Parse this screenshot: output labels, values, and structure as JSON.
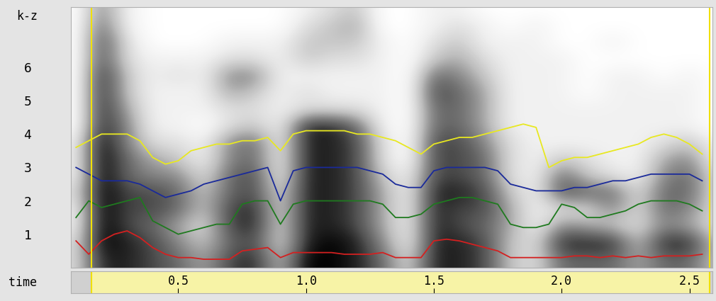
{
  "chart_data": {
    "type": "spectrogram",
    "xlabel": "time",
    "ylabel": "k-z",
    "xlim": [
      0.08,
      2.59
    ],
    "xticks": [
      0.5,
      1.0,
      1.5,
      2.0,
      2.5
    ],
    "ylim": [
      0,
      7.8
    ],
    "yticks": [
      1,
      2,
      3,
      4,
      5,
      6
    ],
    "selection": [
      0.16,
      2.58
    ],
    "cells": {
      "x": [
        0.1,
        0.2,
        0.3,
        0.4,
        0.5,
        0.6,
        0.7,
        0.8,
        0.9,
        1.0,
        1.1,
        1.2,
        1.3,
        1.4,
        1.5,
        1.6,
        1.7,
        1.8,
        1.9,
        2.0,
        2.1,
        2.2,
        2.3,
        2.4,
        2.5,
        2.6
      ],
      "y": [
        0.25,
        0.75,
        1.25,
        1.75,
        2.25,
        2.75,
        3.25,
        3.75,
        4.25,
        4.75,
        5.25,
        5.75,
        6.25,
        6.75,
        7.25,
        7.75
      ],
      "zlim": [
        0,
        9
      ],
      "values": [
        [
          2,
          2,
          1,
          1,
          2,
          1,
          1,
          1,
          0,
          0,
          0,
          0,
          0,
          0,
          0,
          0
        ],
        [
          8,
          9,
          9,
          9,
          9,
          9,
          9,
          9,
          8,
          8,
          8,
          8,
          7,
          7,
          6,
          5
        ],
        [
          8,
          8,
          7,
          7,
          7,
          6,
          6,
          5,
          5,
          4,
          3,
          3,
          2,
          2,
          1,
          1
        ],
        [
          7,
          7,
          6,
          7,
          7,
          5,
          4,
          2,
          1,
          1,
          1,
          1,
          1,
          0,
          0,
          0
        ],
        [
          6,
          5,
          4,
          6,
          6,
          5,
          3,
          2,
          1,
          1,
          1,
          2,
          1,
          0,
          0,
          0
        ],
        [
          4,
          3,
          2,
          3,
          3,
          2,
          1,
          1,
          0,
          1,
          1,
          1,
          1,
          0,
          0,
          0
        ],
        [
          7,
          6,
          7,
          7,
          6,
          6,
          5,
          5,
          2,
          2,
          4,
          5,
          2,
          1,
          0,
          0
        ],
        [
          8,
          7,
          8,
          8,
          7,
          7,
          6,
          6,
          3,
          2,
          3,
          5,
          2,
          1,
          0,
          0
        ],
        [
          3,
          2,
          2,
          2,
          2,
          1,
          1,
          1,
          1,
          1,
          1,
          1,
          1,
          1,
          0,
          0
        ],
        [
          9,
          8,
          8,
          8,
          8,
          8,
          8,
          8,
          8,
          2,
          2,
          1,
          3,
          3,
          2,
          1
        ],
        [
          9,
          9,
          8,
          8,
          8,
          8,
          8,
          8,
          8,
          2,
          1,
          1,
          2,
          3,
          3,
          2
        ],
        [
          8,
          8,
          7,
          7,
          7,
          7,
          7,
          7,
          6,
          2,
          1,
          1,
          2,
          3,
          4,
          3
        ],
        [
          6,
          5,
          4,
          4,
          4,
          3,
          2,
          2,
          1,
          1,
          1,
          1,
          1,
          1,
          0,
          0
        ],
        [
          2,
          1,
          1,
          1,
          1,
          1,
          0,
          0,
          0,
          0,
          0,
          0,
          0,
          0,
          0,
          0
        ],
        [
          8,
          8,
          8,
          8,
          8,
          7,
          7,
          7,
          6,
          6,
          7,
          6,
          3,
          2,
          1,
          1
        ],
        [
          8,
          8,
          7,
          7,
          8,
          7,
          7,
          7,
          6,
          6,
          6,
          5,
          4,
          3,
          2,
          1
        ],
        [
          7,
          7,
          6,
          7,
          7,
          6,
          6,
          5,
          4,
          4,
          4,
          3,
          2,
          1,
          1,
          0
        ],
        [
          3,
          3,
          4,
          4,
          3,
          2,
          2,
          2,
          1,
          1,
          1,
          1,
          1,
          1,
          0,
          0
        ],
        [
          2,
          2,
          1,
          1,
          1,
          1,
          1,
          1,
          1,
          1,
          1,
          1,
          1,
          1,
          1,
          0
        ],
        [
          6,
          8,
          5,
          2,
          7,
          6,
          3,
          1,
          1,
          1,
          1,
          1,
          1,
          0,
          0,
          0
        ],
        [
          6,
          8,
          4,
          2,
          6,
          3,
          2,
          1,
          1,
          1,
          0,
          0,
          0,
          0,
          0,
          0
        ],
        [
          6,
          8,
          3,
          5,
          6,
          2,
          1,
          1,
          1,
          1,
          1,
          1,
          0,
          1,
          0,
          0
        ],
        [
          4,
          3,
          2,
          2,
          2,
          1,
          1,
          1,
          1,
          1,
          1,
          1,
          0,
          0,
          0,
          0
        ],
        [
          6,
          8,
          5,
          6,
          6,
          5,
          4,
          2,
          1,
          1,
          1,
          0,
          0,
          0,
          0,
          0
        ],
        [
          6,
          8,
          4,
          5,
          6,
          6,
          5,
          3,
          1,
          1,
          1,
          1,
          0,
          0,
          0,
          0
        ],
        [
          3,
          3,
          2,
          2,
          2,
          2,
          1,
          1,
          0,
          0,
          0,
          0,
          0,
          0,
          0,
          0
        ]
      ]
    },
    "x": [
      0.1,
      0.15,
      0.2,
      0.25,
      0.3,
      0.35,
      0.4,
      0.45,
      0.5,
      0.55,
      0.6,
      0.65,
      0.7,
      0.75,
      0.8,
      0.85,
      0.9,
      0.95,
      1.0,
      1.05,
      1.1,
      1.15,
      1.2,
      1.25,
      1.3,
      1.35,
      1.4,
      1.45,
      1.5,
      1.55,
      1.6,
      1.65,
      1.7,
      1.75,
      1.8,
      1.85,
      1.9,
      1.95,
      2.0,
      2.05,
      2.1,
      2.15,
      2.2,
      2.25,
      2.3,
      2.35,
      2.4,
      2.45,
      2.5,
      2.55
    ],
    "series": [
      {
        "color": "#d42020",
        "values": [
          0.8,
          0.4,
          0.8,
          1.0,
          1.1,
          0.9,
          0.6,
          0.4,
          0.3,
          0.3,
          0.25,
          0.25,
          0.25,
          0.5,
          0.55,
          0.6,
          0.3,
          0.45,
          0.45,
          0.45,
          0.45,
          0.4,
          0.4,
          0.4,
          0.45,
          0.3,
          0.3,
          0.3,
          0.8,
          0.85,
          0.8,
          0.7,
          0.6,
          0.5,
          0.3,
          0.3,
          0.3,
          0.3,
          0.3,
          0.35,
          0.35,
          0.3,
          0.35,
          0.3,
          0.35,
          0.3,
          0.35,
          0.35,
          0.35,
          0.4
        ]
      },
      {
        "color": "#1f7a1f",
        "values": [
          1.5,
          2.0,
          1.8,
          1.9,
          2.0,
          2.1,
          1.4,
          1.2,
          1.0,
          1.1,
          1.2,
          1.3,
          1.3,
          1.9,
          2.0,
          2.0,
          1.3,
          1.9,
          2.0,
          2.0,
          2.0,
          2.0,
          2.0,
          2.0,
          1.9,
          1.5,
          1.5,
          1.6,
          1.9,
          2.0,
          2.1,
          2.1,
          2.0,
          1.9,
          1.3,
          1.2,
          1.2,
          1.3,
          1.9,
          1.8,
          1.5,
          1.5,
          1.6,
          1.7,
          1.9,
          2.0,
          2.0,
          2.0,
          1.9,
          1.7
        ]
      },
      {
        "color": "#1a2a9a",
        "values": [
          3.0,
          2.8,
          2.6,
          2.6,
          2.6,
          2.5,
          2.3,
          2.1,
          2.2,
          2.3,
          2.5,
          2.6,
          2.7,
          2.8,
          2.9,
          3.0,
          2.0,
          2.9,
          3.0,
          3.0,
          3.0,
          3.0,
          3.0,
          2.9,
          2.8,
          2.5,
          2.4,
          2.4,
          2.9,
          3.0,
          3.0,
          3.0,
          3.0,
          2.9,
          2.5,
          2.4,
          2.3,
          2.3,
          2.3,
          2.4,
          2.4,
          2.5,
          2.6,
          2.6,
          2.7,
          2.8,
          2.8,
          2.8,
          2.8,
          2.6
        ]
      },
      {
        "color": "#e8e820",
        "values": [
          3.6,
          3.8,
          4.0,
          4.0,
          4.0,
          3.8,
          3.3,
          3.1,
          3.2,
          3.5,
          3.6,
          3.7,
          3.7,
          3.8,
          3.8,
          3.9,
          3.5,
          4.0,
          4.1,
          4.1,
          4.1,
          4.1,
          4.0,
          4.0,
          3.9,
          3.8,
          3.6,
          3.4,
          3.7,
          3.8,
          3.9,
          3.9,
          4.0,
          4.1,
          4.2,
          4.3,
          4.2,
          3.0,
          3.2,
          3.3,
          3.3,
          3.4,
          3.5,
          3.6,
          3.7,
          3.9,
          4.0,
          3.9,
          3.7,
          3.4
        ]
      }
    ]
  }
}
